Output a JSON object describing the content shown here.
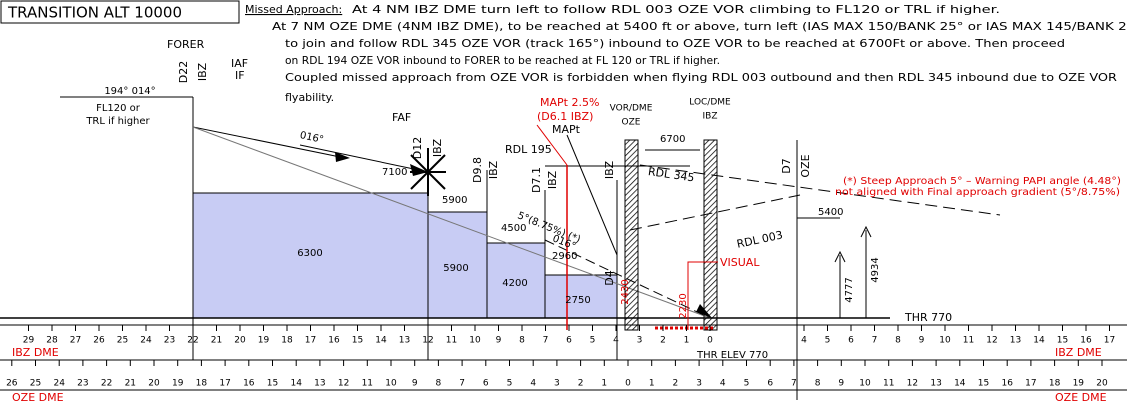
{
  "header": {
    "transition": "TRANSITION ALT 10000"
  },
  "missed_approach": {
    "label": "Missed Approach:",
    "lines": [
      "At 4 NM IBZ DME turn left to follow RDL 003 OZE VOR climbing to FL120 or TRL if higher.",
      "At 7 NM OZE DME (4NM IBZ DME), to be reached at 5400 ft or above, turn left (IAS MAX 150/BANK 25° or IAS MAX 145/BANK 20°",
      "to join and follow RDL 345 OZE VOR (track 165°) inbound to OZE VOR to be reached at 6700Ft or above. Then proceed",
      "on RDL 194 OZE VOR inbound to FORER to be reached at FL 120 or TRL if higher.",
      "Coupled missed approach from OZE VOR is forbidden when flying RDL 003 outbound and then RDL 345 inbound due to OZE VOR",
      "flyability."
    ]
  },
  "profile": {
    "forer": "FORER",
    "iaf": "IAF",
    "if": "IF",
    "d22": "D22",
    "ibz": "IBZ",
    "tracks": "194°   014°",
    "fl120": "FL120 or",
    "trl": "TRL if higher",
    "faf": "FAF",
    "d12": "D12",
    "d98": "D9.8",
    "d71": "D7.1",
    "d4": "D4",
    "d7": "D7",
    "oze": "OZE",
    "track_in": "016°",
    "track_in2": "016°",
    "rdl195": "RDL  195",
    "rdl345": "RDL  345",
    "rdl003": "RDL  003",
    "mapt_red": "MAPt  2.5%",
    "mapt_red2": "(D6.1  IBZ)",
    "mapt": "MAPt",
    "vor_dme": "VOR/DME",
    "loc_dme": "LOC/DME",
    "alt_7100": "7100",
    "alt_5900": "5900",
    "alt_4500": "4500",
    "alt_2960": "2960",
    "alt_6700": "6700",
    "alt_5400": "5400",
    "msa_6300": "6300",
    "msa_5900": "5900",
    "msa_4200": "4200",
    "msa_2750": "2750",
    "gradient": "5°(8.75%) (*)",
    "visual": "VISUAL",
    "h2430": "2430",
    "h2230": "2230",
    "obs_4777": "4777",
    "obs_4934": "4934",
    "note1": "(*) Steep Approach 5° – Warning PAPI angle (4.48°)",
    "note2": "not aligned with Final approach gradient (5°/8.75%)",
    "thr": "THR  770",
    "thr_elev": "THR ELEV 770"
  },
  "scales": {
    "ibz_label": "IBZ DME",
    "oze_label": "OZE DME",
    "ibz_left": [
      29,
      28,
      27,
      26,
      25,
      24,
      23,
      22,
      21,
      20,
      19,
      18,
      17,
      16,
      15,
      14,
      13,
      12,
      11,
      10,
      9,
      8,
      7,
      6,
      5,
      4,
      3,
      2,
      1,
      0
    ],
    "ibz_right": [
      4,
      5,
      6,
      7,
      8,
      9,
      10,
      11,
      12,
      13,
      14,
      15,
      16,
      17
    ],
    "oze_left": [
      26,
      25,
      24,
      23,
      22,
      21,
      20,
      19,
      18,
      17,
      16,
      15,
      14,
      13,
      12,
      11,
      10,
      9,
      8,
      7,
      6,
      5,
      4,
      3,
      2,
      1,
      0
    ],
    "oze_right": [
      1,
      2,
      3,
      4,
      5,
      6,
      7,
      8,
      9,
      10,
      11,
      12,
      13,
      14,
      15,
      16,
      17,
      18,
      19,
      20
    ]
  }
}
